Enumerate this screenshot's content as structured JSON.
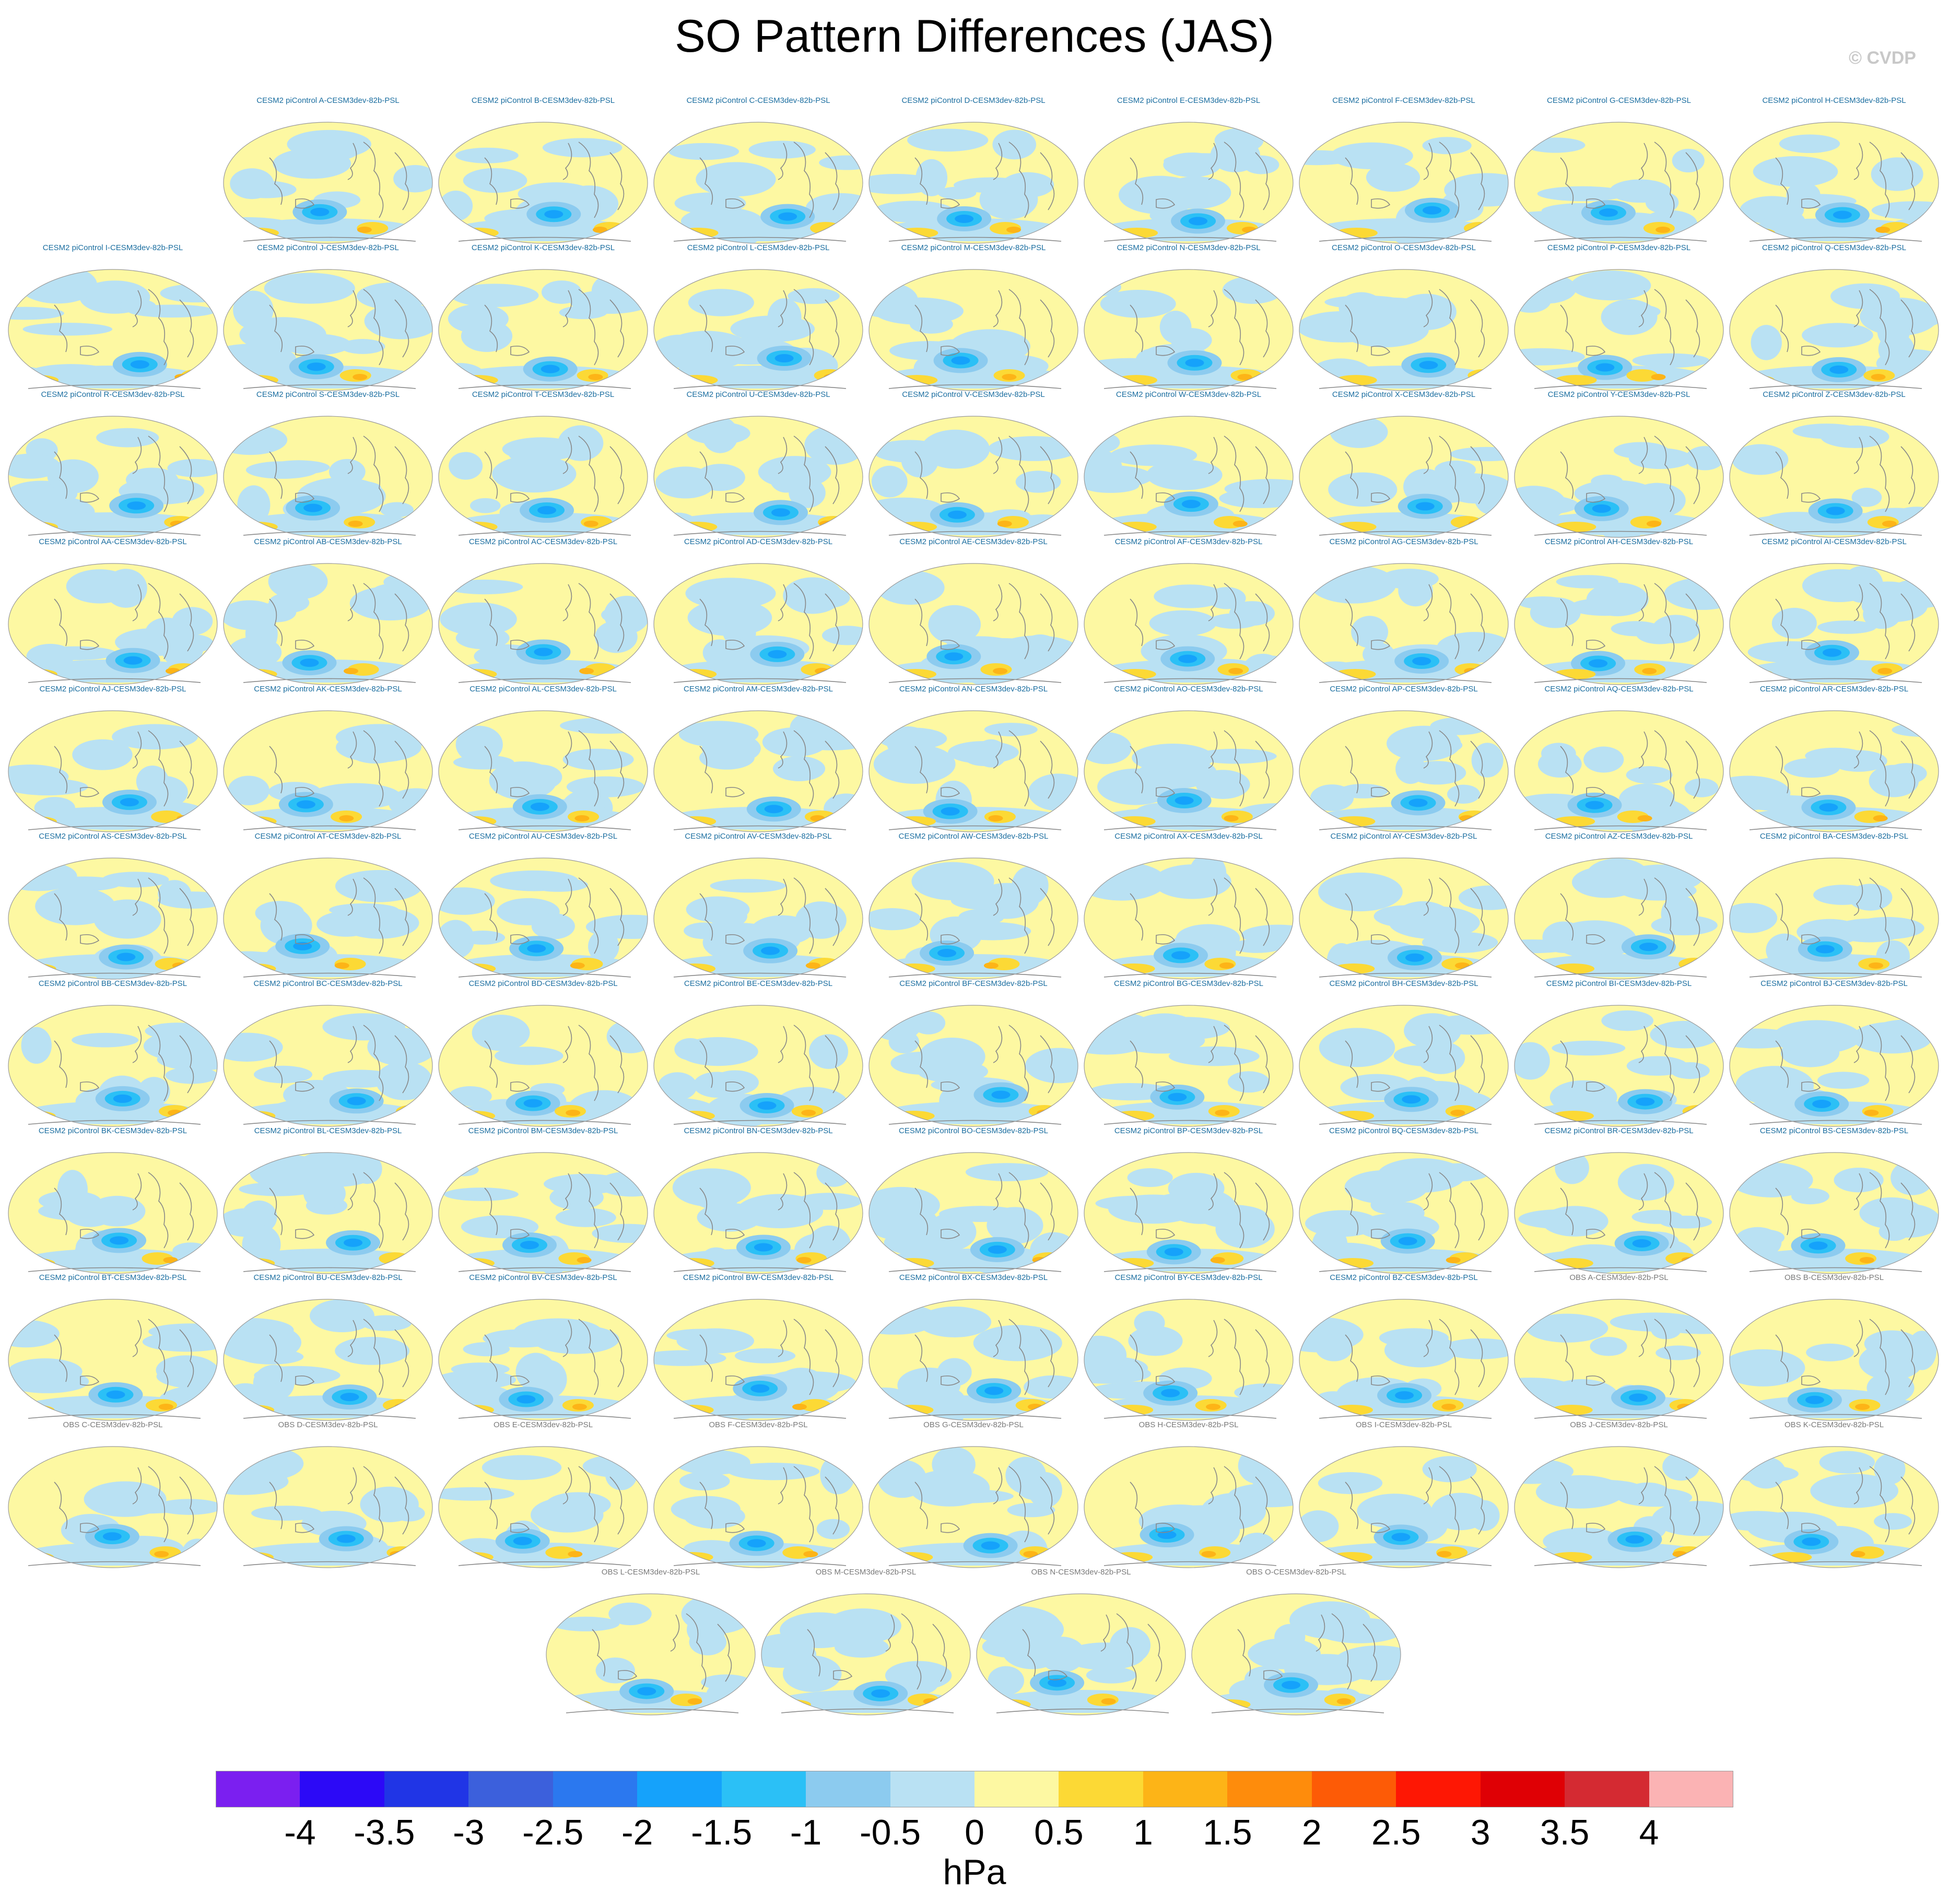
{
  "title": "SO Pattern Differences (JAS)",
  "copyright": "© CVDP",
  "panels": [
    "CESM2 piControl A-CESM3dev-82b-PSL",
    "CESM2 piControl B-CESM3dev-82b-PSL",
    "CESM2 piControl C-CESM3dev-82b-PSL",
    "CESM2 piControl D-CESM3dev-82b-PSL",
    "CESM2 piControl E-CESM3dev-82b-PSL",
    "CESM2 piControl F-CESM3dev-82b-PSL",
    "CESM2 piControl G-CESM3dev-82b-PSL",
    "CESM2 piControl H-CESM3dev-82b-PSL",
    "CESM2 piControl I-CESM3dev-82b-PSL",
    "CESM2 piControl J-CESM3dev-82b-PSL",
    "CESM2 piControl K-CESM3dev-82b-PSL",
    "CESM2 piControl L-CESM3dev-82b-PSL",
    "CESM2 piControl M-CESM3dev-82b-PSL",
    "CESM2 piControl N-CESM3dev-82b-PSL",
    "CESM2 piControl O-CESM3dev-82b-PSL",
    "CESM2 piControl P-CESM3dev-82b-PSL",
    "CESM2 piControl Q-CESM3dev-82b-PSL",
    "CESM2 piControl R-CESM3dev-82b-PSL",
    "CESM2 piControl S-CESM3dev-82b-PSL",
    "CESM2 piControl T-CESM3dev-82b-PSL",
    "CESM2 piControl U-CESM3dev-82b-PSL",
    "CESM2 piControl V-CESM3dev-82b-PSL",
    "CESM2 piControl W-CESM3dev-82b-PSL",
    "CESM2 piControl X-CESM3dev-82b-PSL",
    "CESM2 piControl Y-CESM3dev-82b-PSL",
    "CESM2 piControl Z-CESM3dev-82b-PSL",
    "CESM2 piControl AA-CESM3dev-82b-PSL",
    "CESM2 piControl AB-CESM3dev-82b-PSL",
    "CESM2 piControl AC-CESM3dev-82b-PSL",
    "CESM2 piControl AD-CESM3dev-82b-PSL",
    "CESM2 piControl AE-CESM3dev-82b-PSL",
    "CESM2 piControl AF-CESM3dev-82b-PSL",
    "CESM2 piControl AG-CESM3dev-82b-PSL",
    "CESM2 piControl AH-CESM3dev-82b-PSL",
    "CESM2 piControl AI-CESM3dev-82b-PSL",
    "CESM2 piControl AJ-CESM3dev-82b-PSL",
    "CESM2 piControl AK-CESM3dev-82b-PSL",
    "CESM2 piControl AL-CESM3dev-82b-PSL",
    "CESM2 piControl AM-CESM3dev-82b-PSL",
    "CESM2 piControl AN-CESM3dev-82b-PSL",
    "CESM2 piControl AO-CESM3dev-82b-PSL",
    "CESM2 piControl AP-CESM3dev-82b-PSL",
    "CESM2 piControl AQ-CESM3dev-82b-PSL",
    "CESM2 piControl AR-CESM3dev-82b-PSL",
    "CESM2 piControl AS-CESM3dev-82b-PSL",
    "CESM2 piControl AT-CESM3dev-82b-PSL",
    "CESM2 piControl AU-CESM3dev-82b-PSL",
    "CESM2 piControl AV-CESM3dev-82b-PSL",
    "CESM2 piControl AW-CESM3dev-82b-PSL",
    "CESM2 piControl AX-CESM3dev-82b-PSL",
    "CESM2 piControl AY-CESM3dev-82b-PSL",
    "CESM2 piControl AZ-CESM3dev-82b-PSL",
    "CESM2 piControl BA-CESM3dev-82b-PSL",
    "CESM2 piControl BB-CESM3dev-82b-PSL",
    "CESM2 piControl BC-CESM3dev-82b-PSL",
    "CESM2 piControl BD-CESM3dev-82b-PSL",
    "CESM2 piControl BE-CESM3dev-82b-PSL",
    "CESM2 piControl BF-CESM3dev-82b-PSL",
    "CESM2 piControl BG-CESM3dev-82b-PSL",
    "CESM2 piControl BH-CESM3dev-82b-PSL",
    "CESM2 piControl BI-CESM3dev-82b-PSL",
    "CESM2 piControl BJ-CESM3dev-82b-PSL",
    "CESM2 piControl BK-CESM3dev-82b-PSL",
    "CESM2 piControl BL-CESM3dev-82b-PSL",
    "CESM2 piControl BM-CESM3dev-82b-PSL",
    "CESM2 piControl BN-CESM3dev-82b-PSL",
    "CESM2 piControl BO-CESM3dev-82b-PSL",
    "CESM2 piControl BP-CESM3dev-82b-PSL",
    "CESM2 piControl BQ-CESM3dev-82b-PSL",
    "CESM2 piControl BR-CESM3dev-82b-PSL",
    "CESM2 piControl BS-CESM3dev-82b-PSL",
    "CESM2 piControl BT-CESM3dev-82b-PSL",
    "CESM2 piControl BU-CESM3dev-82b-PSL",
    "CESM2 piControl BV-CESM3dev-82b-PSL",
    "CESM2 piControl BW-CESM3dev-82b-PSL",
    "CESM2 piControl BX-CESM3dev-82b-PSL",
    "CESM2 piControl BY-CESM3dev-82b-PSL",
    "CESM2 piControl BZ-CESM3dev-82b-PSL",
    "OBS A-CESM3dev-82b-PSL",
    "OBS B-CESM3dev-82b-PSL",
    "OBS C-CESM3dev-82b-PSL",
    "OBS D-CESM3dev-82b-PSL",
    "OBS E-CESM3dev-82b-PSL",
    "OBS F-CESM3dev-82b-PSL",
    "OBS G-CESM3dev-82b-PSL",
    "OBS H-CESM3dev-82b-PSL",
    "OBS I-CESM3dev-82b-PSL",
    "OBS J-CESM3dev-82b-PSL",
    "OBS K-CESM3dev-82b-PSL",
    "OBS L-CESM3dev-82b-PSL",
    "OBS M-CESM3dev-82b-PSL",
    "OBS N-CESM3dev-82b-PSL",
    "OBS O-CESM3dev-82b-PSL"
  ],
  "row_sizes": [
    8,
    9,
    9,
    9,
    9,
    9,
    9,
    9,
    9,
    9,
    4
  ],
  "colorbar": {
    "labels": [
      "-4",
      "-3.5",
      "-3",
      "-2.5",
      "-2",
      "-1.5",
      "-1",
      "-0.5",
      "0",
      "0.5",
      "1",
      "1.5",
      "2",
      "2.5",
      "3",
      "3.5",
      "4"
    ],
    "colors": [
      "#7b1ff0",
      "#2c09f7",
      "#2035e6",
      "#3c60dc",
      "#2b78ef",
      "#15a2fb",
      "#2bc0f6",
      "#8ccbef",
      "#b9e1f3",
      "#fdf8a2",
      "#fcd935",
      "#fdb417",
      "#fe8c0c",
      "#fd5b06",
      "#fe1704",
      "#df0005",
      "#d42a32",
      "#fbb3b4"
    ],
    "units": "hPa"
  },
  "palette": {
    "yellow": "#fdf8a2",
    "light_blue": "#b9e1f3",
    "mid_blue": "#8ccbef",
    "blue": "#2bc0f6",
    "deep_blue": "#15a2fb",
    "gold": "#fcd935",
    "orange": "#fdb417",
    "coast": "#888888"
  }
}
